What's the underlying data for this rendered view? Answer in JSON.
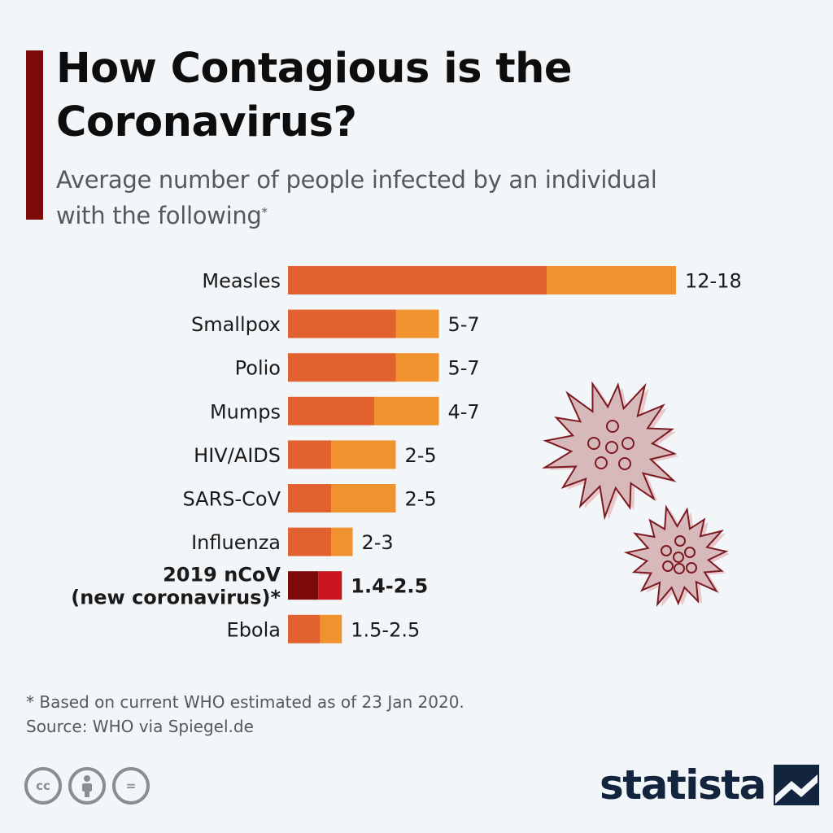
{
  "header": {
    "title": "How Contagious is the Coronavirus?",
    "subtitle": "Average number of people infected by an individual with the following",
    "subtitle_marker": "*"
  },
  "chart_data": {
    "type": "bar",
    "orientation": "horizontal",
    "stacked_range": true,
    "categories": [
      "Measles",
      "Smallpox",
      "Polio",
      "Mumps",
      "HIV/AIDS",
      "SARS-CoV",
      "Influenza",
      "2019 nCoV (new coronavirus)*",
      "Ebola"
    ],
    "category_display": [
      [
        "Measles"
      ],
      [
        "Smallpox"
      ],
      [
        "Polio"
      ],
      [
        "Mumps"
      ],
      [
        "HIV/AIDS"
      ],
      [
        "SARS-CoV"
      ],
      [
        "Influenza"
      ],
      [
        "2019 nCoV",
        "(new coronavirus)*"
      ],
      [
        "Ebola"
      ]
    ],
    "series": [
      {
        "values": [
          12,
          5,
          5,
          4,
          2,
          2,
          2,
          1.4,
          1.5
        ]
      },
      {
        "values": [
          18,
          7,
          7,
          7,
          5,
          5,
          3,
          2.5,
          2.5
        ]
      }
    ],
    "labels": [
      "12-18",
      "5-7",
      "5-7",
      "4-7",
      "2-5",
      "2-5",
      "2-3",
      "1.4-2.5",
      "1.5-2.5"
    ],
    "highlight_index": 7,
    "xlim": [
      0,
      18
    ],
    "grid": false,
    "legend": "none"
  },
  "colors": {
    "low": "#e2622f",
    "high": "#f0932e",
    "highlight_low": "#7d0a0a",
    "highlight_high": "#c8141e",
    "text": "#1a1a1a",
    "virus_fill": "#d7b9bc",
    "virus_stroke": "#7d1a20",
    "brand": "#13243f",
    "accent": "#7d0a0a"
  },
  "decorations": {
    "illustration": "virus-illustration"
  },
  "footer": {
    "note": "* Based on current WHO estimated as of 23 Jan 2020.",
    "source": "Source: WHO via Spiegel.de",
    "license_icons": [
      "cc-icon",
      "by-icon",
      "nd-icon"
    ],
    "license_text": [
      "cc",
      "",
      "="
    ],
    "brand_name": "statista"
  }
}
